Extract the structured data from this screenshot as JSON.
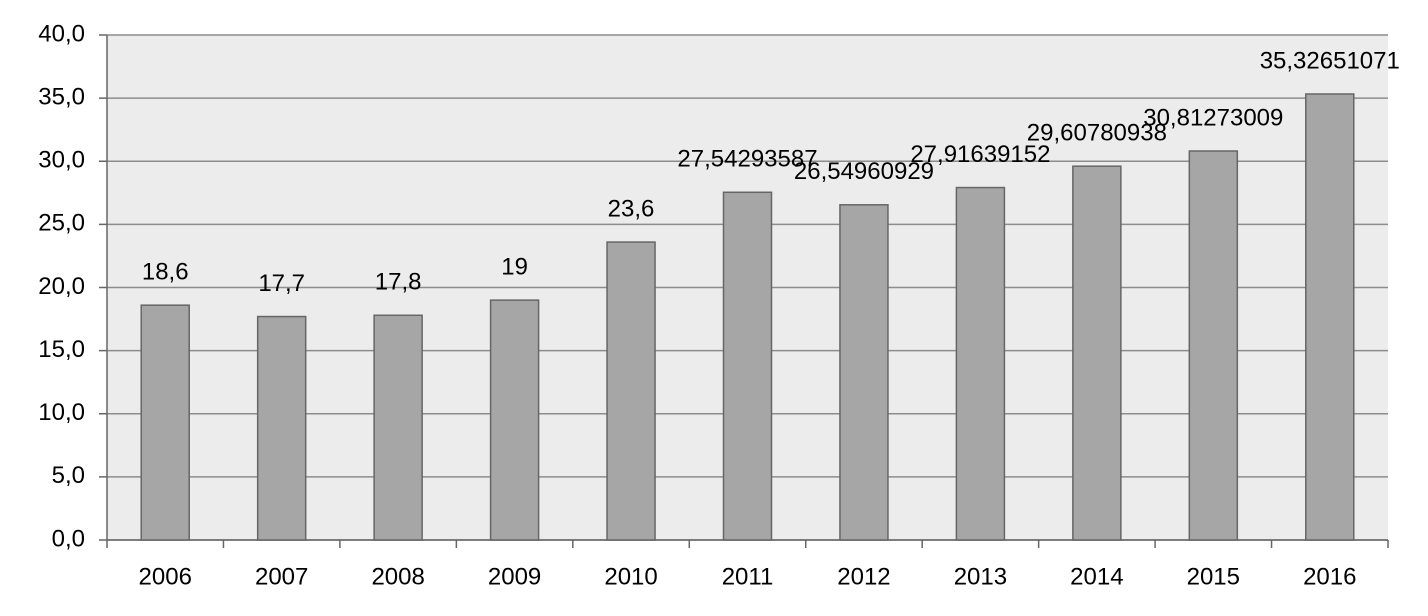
{
  "chart_data": {
    "type": "bar",
    "categories": [
      "2006",
      "2007",
      "2008",
      "2009",
      "2010",
      "2011",
      "2012",
      "2013",
      "2014",
      "2015",
      "2016"
    ],
    "values": [
      18.6,
      17.7,
      17.8,
      19,
      23.6,
      27.54293587,
      26.54960929,
      27.91639152,
      29.60780938,
      30.81273009,
      35.32651071
    ],
    "value_labels": [
      "18,6",
      "17,7",
      "17,8",
      "19",
      "23,6",
      "27,54293587",
      "26,54960929",
      "27,91639152",
      "29,60780938",
      "30,81273009",
      "35,32651071"
    ],
    "color": "#a6a6a6",
    "ylim": [
      0,
      40
    ],
    "yticks": [
      {
        "value": 0,
        "label": "0,0"
      },
      {
        "value": 5,
        "label": "5,0"
      },
      {
        "value": 10,
        "label": "10,0"
      },
      {
        "value": 15,
        "label": "15,0"
      },
      {
        "value": 20,
        "label": "20,0"
      },
      {
        "value": 25,
        "label": "25,0"
      },
      {
        "value": 30,
        "label": "30,0"
      },
      {
        "value": 35,
        "label": "35,0"
      },
      {
        "value": 40,
        "label": "40,0"
      }
    ],
    "grid": true
  }
}
